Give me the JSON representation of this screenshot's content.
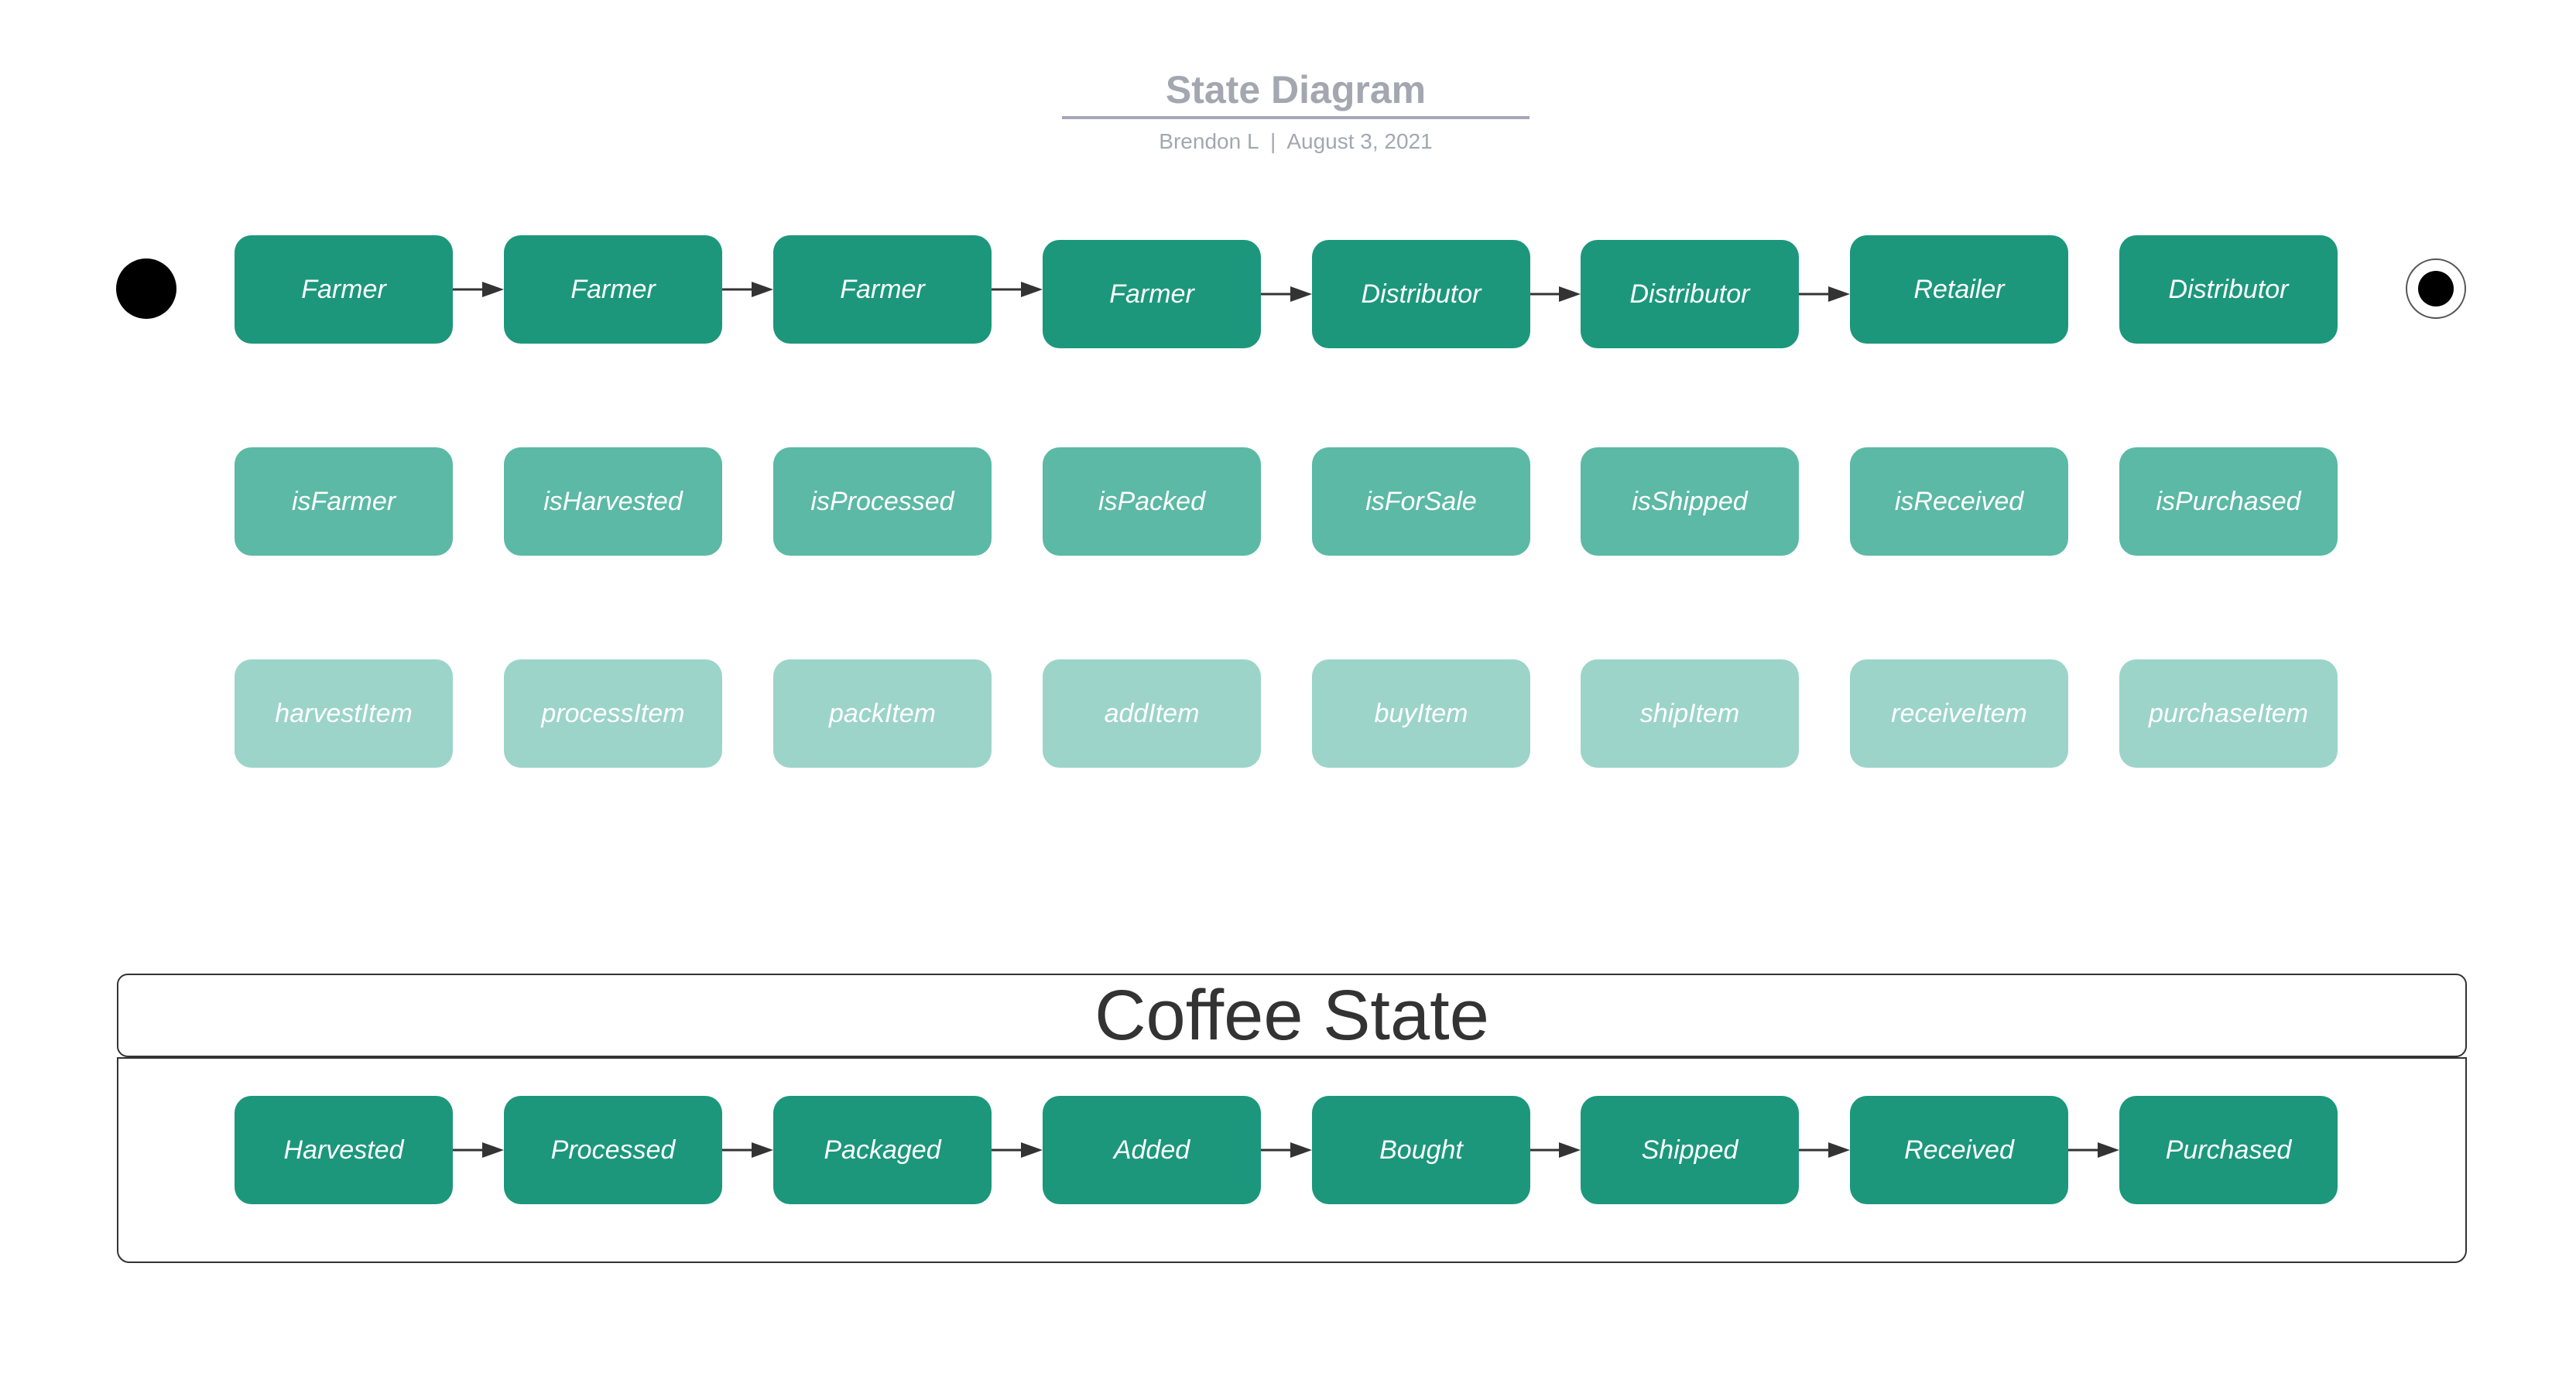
{
  "header": {
    "title": "State Diagram",
    "subtitle": "Brendon L  |  August 3, 2021"
  },
  "diagram": {
    "roles": [
      "Farmer",
      "Farmer",
      "Farmer",
      "Farmer",
      "Distributor",
      "Distributor",
      "Retailer",
      "Distributor"
    ],
    "checks": [
      "isFarmer",
      "isHarvested",
      "isProcessed",
      "isPacked",
      "isForSale",
      "isShipped",
      "isReceived",
      "isPurchased"
    ],
    "actions": [
      "harvestItem",
      "processItem",
      "packItem",
      "addItem",
      "buyItem",
      "shipItem",
      "receiveItem",
      "purchaseItem"
    ],
    "coffee_state": {
      "title": "Coffee State",
      "states": [
        "Harvested",
        "Processed",
        "Packaged",
        "Added",
        "Bought",
        "Shipped",
        "Received",
        "Purchased"
      ]
    }
  },
  "colors": {
    "primary": "#1c977c",
    "secondary": "#5bb9a5",
    "tertiary": "#9cd4ca",
    "arrow": "#333333",
    "header_text": "#a3a7b0"
  },
  "icons": {
    "start": "initial-state-icon",
    "end": "final-state-icon"
  }
}
